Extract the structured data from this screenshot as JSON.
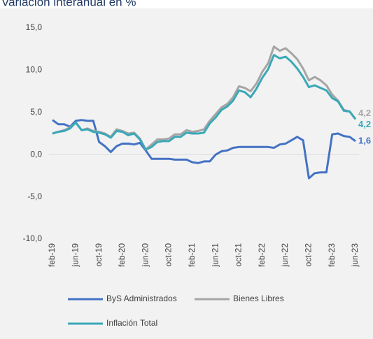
{
  "chart_data": {
    "type": "line",
    "title": "Variación interanual en %",
    "categories": [
      "feb-19",
      null,
      null,
      null,
      "jun-19",
      null,
      null,
      null,
      "oct-19",
      null,
      null,
      null,
      "feb-20",
      null,
      null,
      null,
      "jun-20",
      null,
      null,
      null,
      "oct-20",
      null,
      null,
      null,
      "feb-21",
      null,
      null,
      null,
      "jun-21",
      null,
      null,
      null,
      "oct-21",
      null,
      null,
      null,
      "feb-22",
      null,
      null,
      null,
      "jun-22",
      null,
      null,
      null,
      "oct-22",
      null,
      null,
      null,
      "feb-23",
      null,
      null,
      null,
      "jun-23"
    ],
    "series": [
      {
        "name": "ByS Administrados",
        "color": "#4472c4",
        "values": [
          4.1,
          3.6,
          3.6,
          3.3,
          4.0,
          4.1,
          4.0,
          4.0,
          1.5,
          1.0,
          0.3,
          1.0,
          1.3,
          1.3,
          1.2,
          1.4,
          0.5,
          -0.5,
          -0.5,
          -0.5,
          -0.5,
          -0.6,
          -0.6,
          -0.6,
          -0.9,
          -1.0,
          -0.8,
          -0.8,
          0.0,
          0.4,
          0.5,
          0.8,
          0.9,
          0.9,
          0.9,
          0.9,
          0.9,
          0.9,
          0.8,
          1.2,
          1.3,
          1.7,
          2.1,
          1.7,
          -2.8,
          -2.2,
          -2.1,
          -2.1,
          2.4,
          2.5,
          2.2,
          2.1,
          1.6
        ],
        "value_labels": [
          null,
          null,
          null,
          null,
          null,
          null,
          null,
          null,
          null,
          null,
          null,
          null,
          null,
          null,
          null,
          null,
          null,
          null,
          null,
          null,
          null,
          null,
          null,
          null,
          null,
          null,
          null,
          null,
          null,
          null,
          null,
          null,
          null,
          null,
          null,
          null,
          null,
          null,
          null,
          null,
          null,
          null,
          null,
          null,
          null,
          null,
          null,
          null,
          null,
          null,
          null,
          null,
          "1,6"
        ]
      },
      {
        "name": "Bienes Libres",
        "color": "#a5a5a5",
        "values": [
          2.5,
          2.7,
          2.9,
          3.2,
          3.8,
          2.9,
          3.1,
          2.8,
          2.7,
          2.5,
          2.1,
          3.0,
          2.8,
          2.5,
          2.6,
          1.9,
          0.6,
          1.2,
          1.8,
          1.8,
          1.9,
          2.4,
          2.4,
          2.9,
          2.7,
          2.8,
          3.0,
          4.0,
          4.8,
          5.6,
          6.0,
          6.8,
          8.1,
          7.9,
          7.5,
          8.4,
          9.8,
          10.8,
          12.8,
          12.3,
          12.6,
          12.0,
          11.3,
          10.2,
          8.8,
          9.2,
          8.8,
          8.2,
          7.1,
          6.4,
          5.3,
          5.1,
          4.2
        ],
        "value_labels": [
          null,
          null,
          null,
          null,
          null,
          null,
          null,
          null,
          null,
          null,
          null,
          null,
          null,
          null,
          null,
          null,
          null,
          null,
          null,
          null,
          null,
          null,
          null,
          null,
          null,
          null,
          null,
          null,
          null,
          null,
          null,
          null,
          null,
          null,
          null,
          null,
          null,
          null,
          null,
          null,
          null,
          null,
          null,
          null,
          null,
          null,
          null,
          null,
          null,
          null,
          null,
          null,
          "4,2"
        ]
      },
      {
        "name": "Inflación Total",
        "color": "#3aa8b8",
        "values": [
          2.5,
          2.7,
          2.8,
          3.1,
          3.8,
          2.9,
          3.0,
          2.7,
          2.6,
          2.4,
          2.0,
          2.8,
          2.7,
          2.3,
          2.5,
          1.8,
          0.6,
          0.9,
          1.5,
          1.6,
          1.6,
          2.1,
          2.1,
          2.6,
          2.5,
          2.5,
          2.6,
          3.7,
          4.4,
          5.3,
          5.7,
          6.4,
          7.6,
          7.4,
          6.8,
          7.8,
          9.1,
          10.1,
          11.8,
          11.4,
          11.6,
          11.0,
          10.2,
          9.2,
          8.0,
          8.2,
          7.9,
          7.6,
          6.7,
          6.3,
          5.2,
          5.1,
          4.2
        ],
        "value_labels": [
          null,
          null,
          null,
          null,
          null,
          null,
          null,
          null,
          null,
          null,
          null,
          null,
          null,
          null,
          null,
          null,
          null,
          null,
          null,
          null,
          null,
          null,
          null,
          null,
          null,
          null,
          null,
          null,
          null,
          null,
          null,
          null,
          null,
          null,
          null,
          null,
          null,
          null,
          null,
          null,
          null,
          null,
          null,
          null,
          null,
          null,
          null,
          null,
          null,
          null,
          null,
          null,
          "4,2"
        ]
      }
    ],
    "ylim": [
      -10,
      15
    ],
    "yticks": [
      {
        "value": -10,
        "label": "-10,0"
      },
      {
        "value": -5,
        "label": "-5,0"
      },
      {
        "value": 0,
        "label": "0,0"
      },
      {
        "value": 5,
        "label": "5,0"
      },
      {
        "value": 10,
        "label": "10,0"
      },
      {
        "value": 15,
        "label": "15,0"
      }
    ],
    "grid": false
  }
}
